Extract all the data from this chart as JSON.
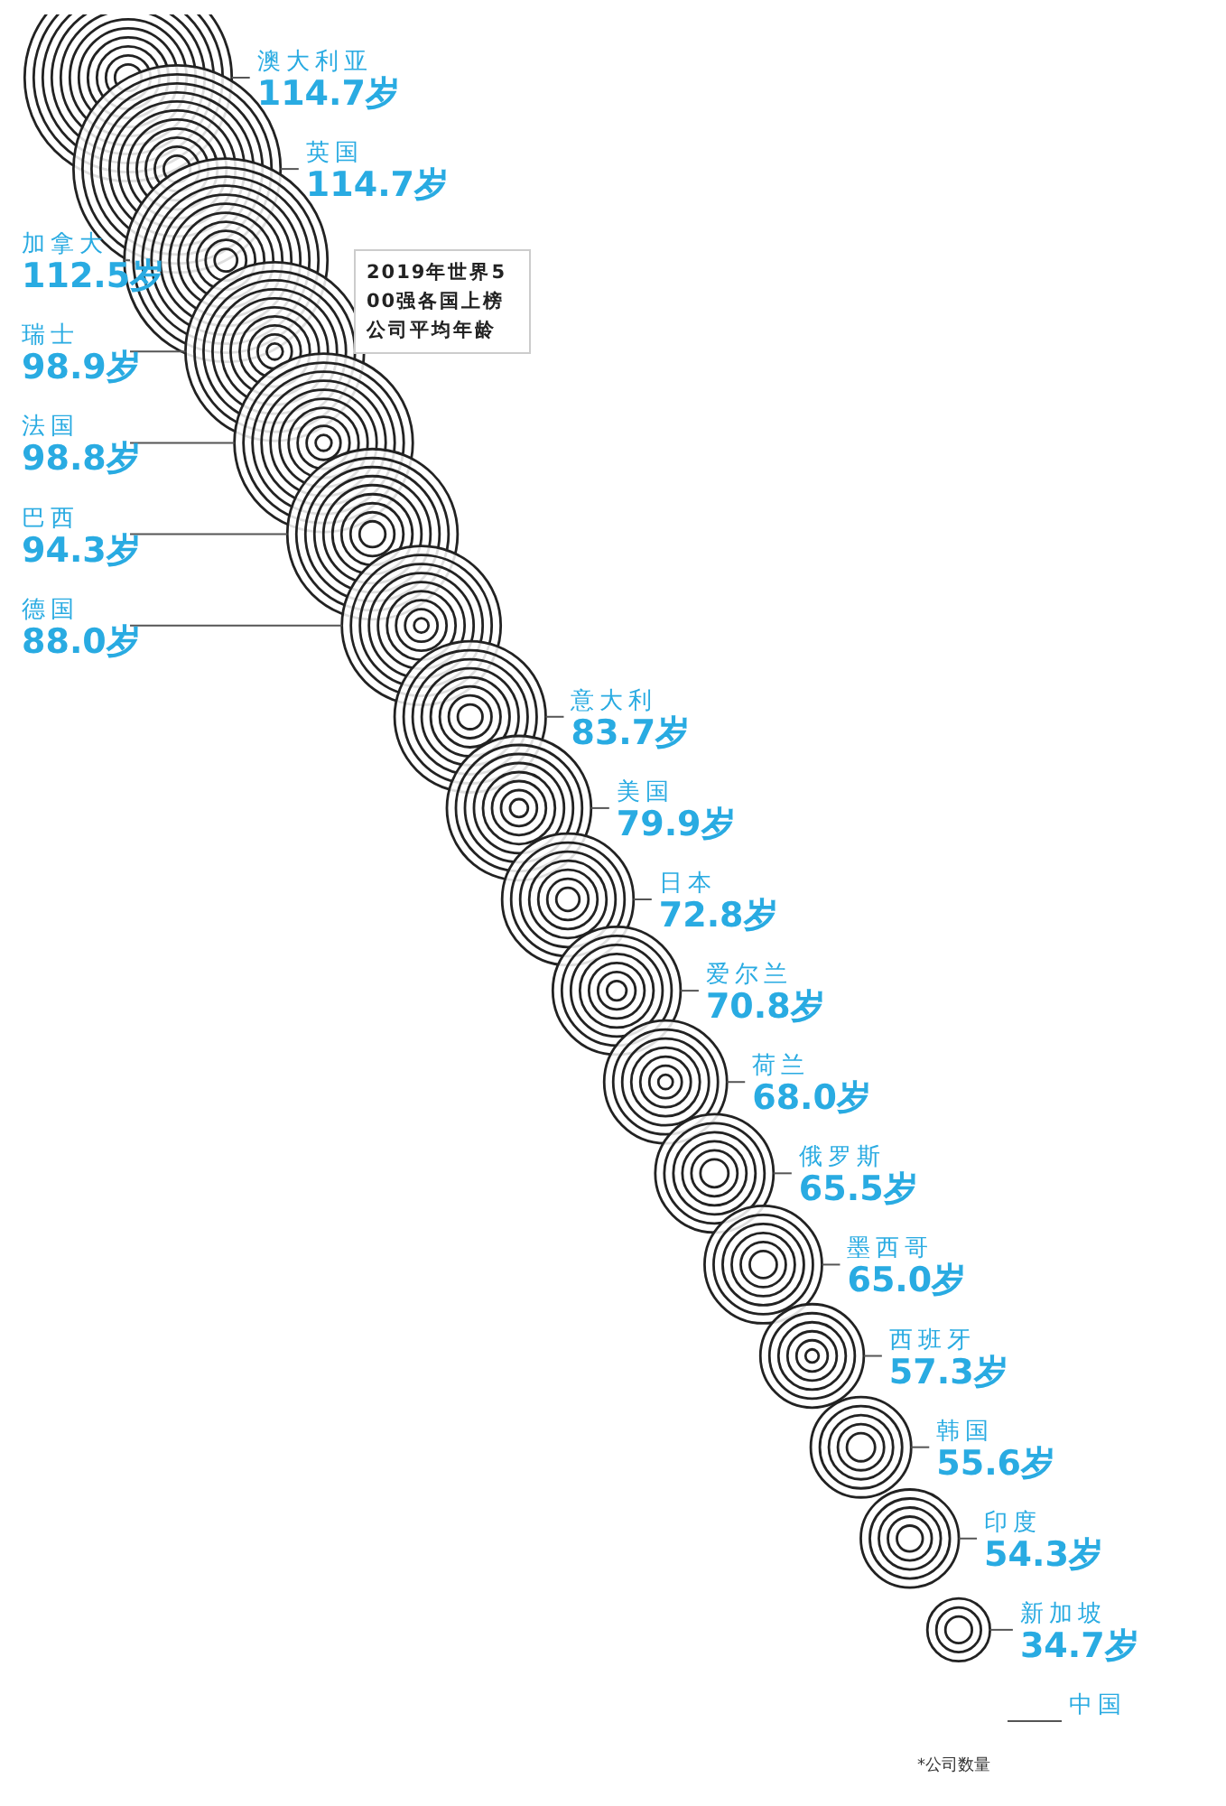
{
  "chart_data": {
    "type": "other",
    "title": "2019年世界500强各国上榜公司平均年龄",
    "categories": [
      "澳大利亚",
      "英国",
      "加拿大",
      "瑞士",
      "法国",
      "巴西",
      "德国",
      "意大利",
      "美国",
      "日本",
      "爱尔兰",
      "荷兰",
      "俄罗斯",
      "墨西哥",
      "西班牙",
      "韩国",
      "印度",
      "新加坡",
      "中国"
    ],
    "values": [
      114.7,
      114.7,
      112.5,
      98.9,
      98.8,
      94.3,
      88.0,
      83.7,
      79.9,
      72.8,
      70.8,
      68.0,
      65.5,
      65.0,
      57.3,
      55.6,
      54.3,
      34.7,
      null
    ],
    "value_labels": [
      "114.7岁",
      "114.7岁",
      "112.5岁",
      "98.9岁",
      "98.8岁",
      "94.3岁",
      "88.0岁",
      "83.7岁",
      "79.9岁",
      "72.8岁",
      "70.8岁",
      "68.0岁",
      "65.5岁",
      "65.0岁",
      "57.3岁",
      "55.6岁",
      "54.3岁",
      "34.7岁",
      null
    ],
    "color": "#29abe2",
    "annotations": [
      "*公司数量"
    ]
  }
}
